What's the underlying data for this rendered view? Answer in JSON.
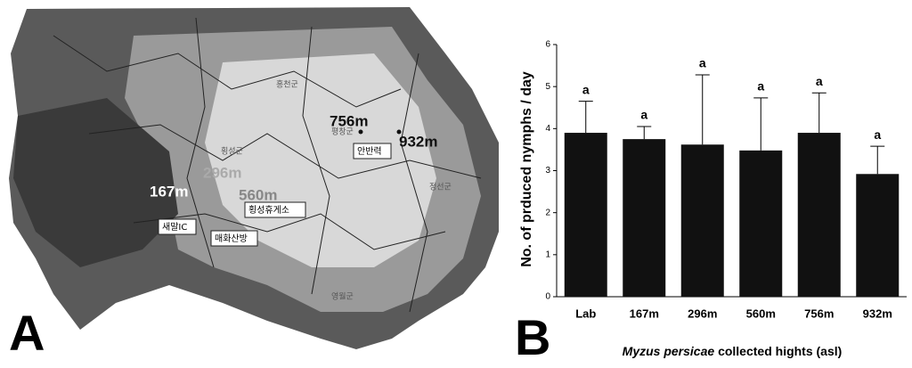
{
  "chart_data": {
    "type": "bar",
    "ylabel": "No. of prduced nymphs / day",
    "xlabel_italic": "Myzus persicae",
    "xlabel": "collected hights (asl)",
    "categories": [
      "Lab",
      "167m",
      "296m",
      "560m",
      "756m",
      "932m"
    ],
    "values": [
      3.9,
      3.75,
      3.62,
      3.48,
      3.9,
      2.92
    ],
    "errors": [
      0.75,
      0.3,
      1.66,
      1.25,
      0.95,
      0.66
    ],
    "significance": [
      "a",
      "a",
      "a",
      "a",
      "a",
      "a"
    ],
    "color": "#111111",
    "ylim": [
      0,
      6
    ],
    "yticks": [
      0,
      1,
      2,
      3,
      4,
      5,
      6
    ],
    "grid": false
  },
  "map": {
    "panel_label": "A",
    "elevation_labels": [
      "167m",
      "296m",
      "560m",
      "756m",
      "932m"
    ],
    "place_labels": [
      "새말IC",
      "매화산방",
      "횡성휴게소",
      "안반력"
    ],
    "region_labels": [
      "홍천군",
      "횡성군",
      "평창군",
      "정선군",
      "영월군"
    ]
  },
  "chart_panel_label": "B"
}
